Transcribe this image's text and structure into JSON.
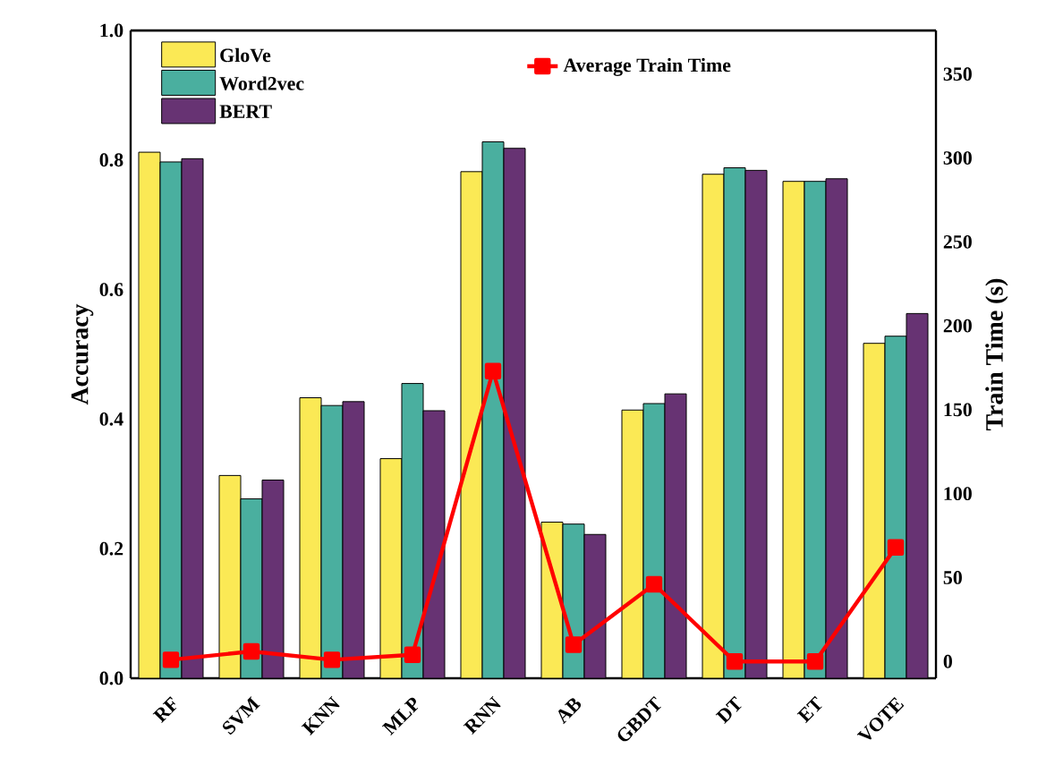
{
  "chart_data": {
    "type": "bar",
    "ylabel": "Accuracy",
    "y2label": "Train Time (s)",
    "categories": [
      "RF",
      "SVM",
      "KNN",
      "MLP",
      "RNN",
      "AB",
      "GBDT",
      "DT",
      "ET",
      "VOTE"
    ],
    "series": [
      {
        "name": "GloVe",
        "color": "#fbe955",
        "values": [
          0.812,
          0.313,
          0.433,
          0.339,
          0.782,
          0.241,
          0.414,
          0.778,
          0.767,
          0.517
        ]
      },
      {
        "name": "Word2vec",
        "color": "#4aaf9f",
        "values": [
          0.797,
          0.277,
          0.421,
          0.455,
          0.828,
          0.238,
          0.424,
          0.788,
          0.767,
          0.528
        ]
      },
      {
        "name": "BERT",
        "color": "#673373",
        "values": [
          0.802,
          0.306,
          0.427,
          0.413,
          0.818,
          0.222,
          0.439,
          0.784,
          0.771,
          0.563
        ]
      },
      {
        "name": "Average Train Time",
        "type": "line",
        "axis": "y2",
        "color": "#ff0000",
        "marker": "square",
        "line_style": "solid",
        "values": [
          1,
          6,
          1,
          4,
          173,
          10,
          46,
          0,
          0,
          68
        ]
      }
    ],
    "ylim": [
      0,
      1.0
    ],
    "yticks": [
      {
        "value": 0,
        "label": "0.0"
      },
      0.2,
      0.4,
      0.6,
      0.8,
      {
        "value": 1.0,
        "label": "1.0"
      }
    ],
    "y2lim": [
      -10,
      376
    ],
    "y2ticks": [
      0,
      50,
      100,
      150,
      200,
      250,
      300,
      350
    ],
    "legend": "top left"
  }
}
